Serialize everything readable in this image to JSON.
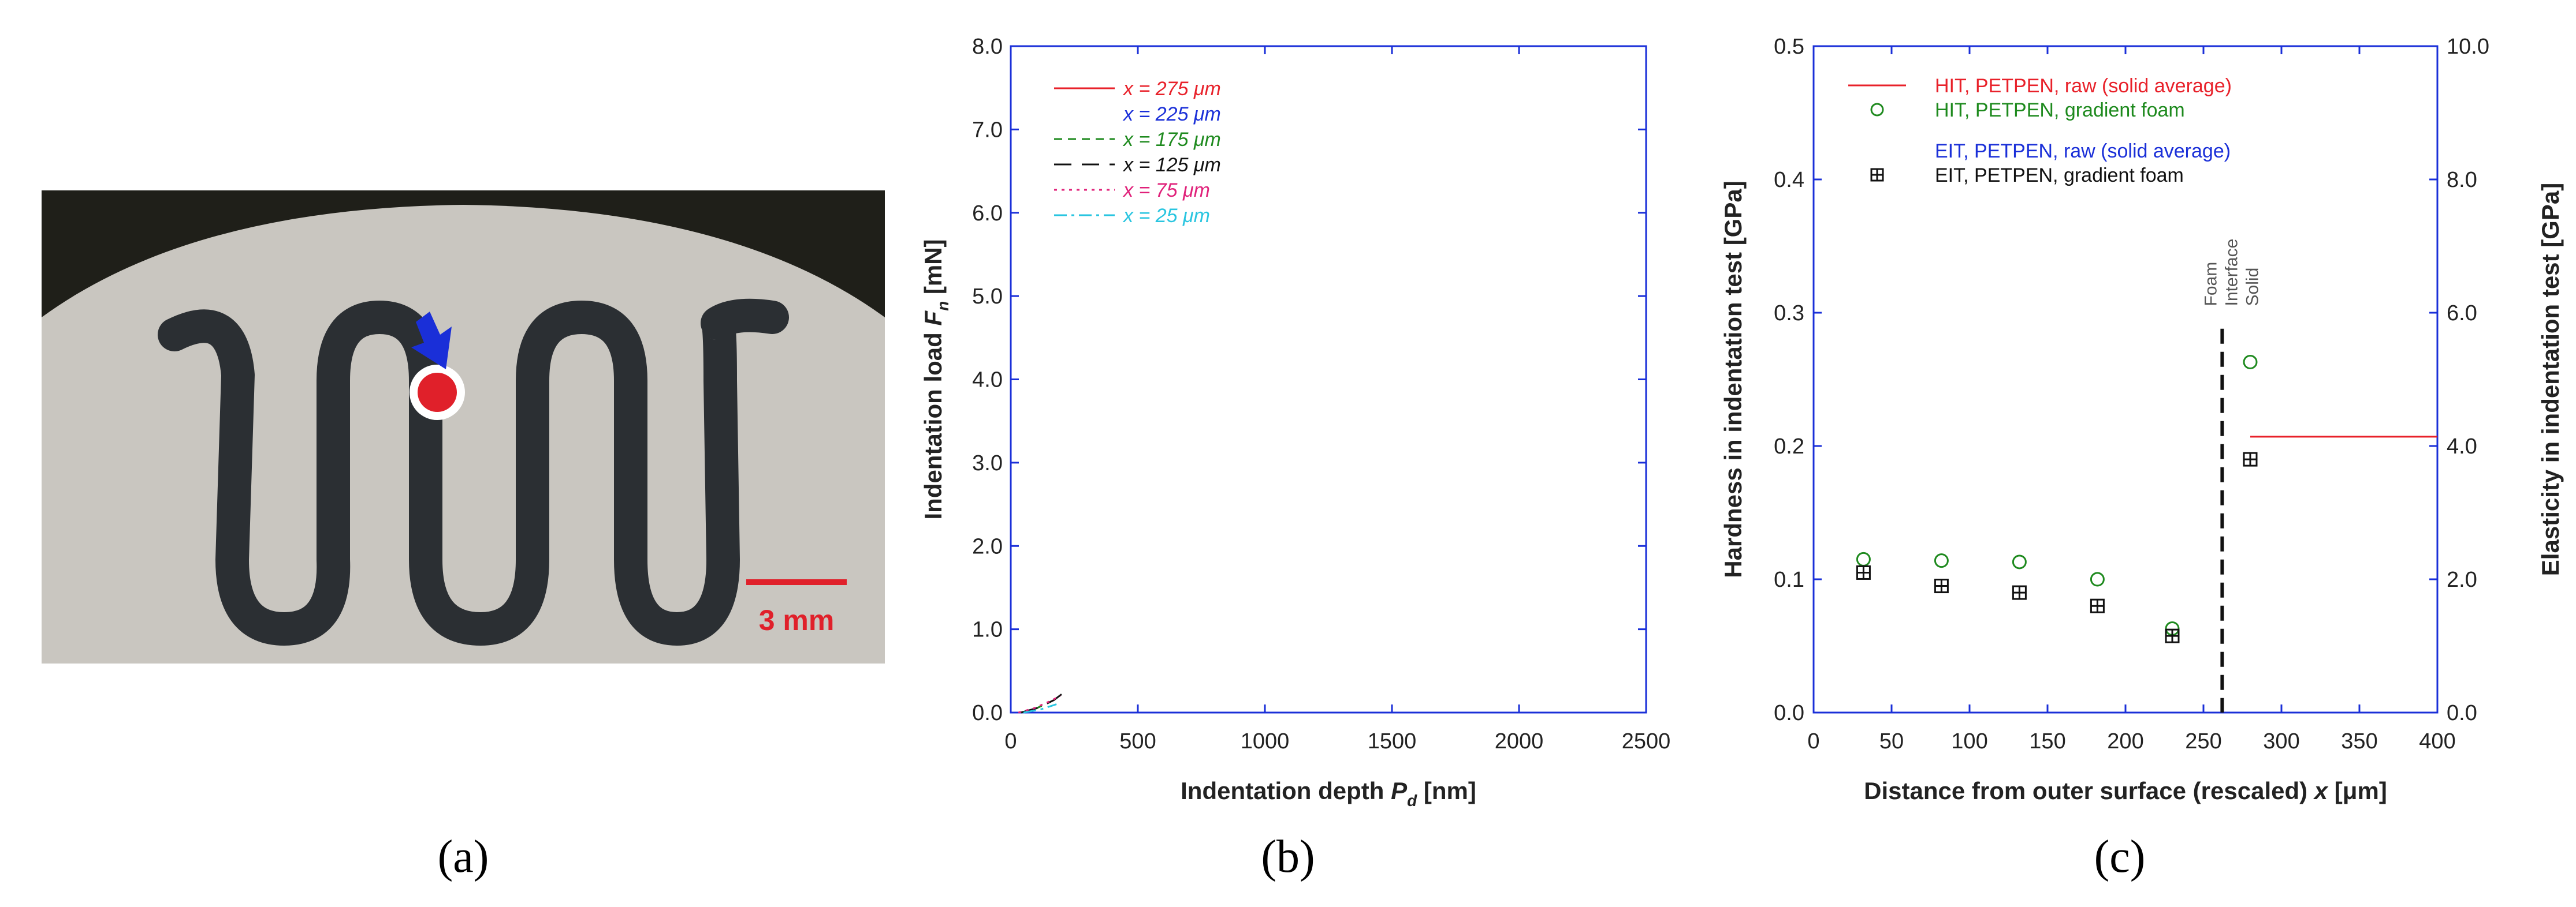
{
  "figure": {
    "captions": {
      "a": "(a)",
      "b": "(b)",
      "c": "(c)"
    }
  },
  "photo": {
    "scale_label": "3 mm",
    "colors": {
      "background": "#1f1f19",
      "disc": "#c9c6c0",
      "pattern": "#2b2f33",
      "marker": "#e0202a",
      "arrow": "#1a2fd8",
      "scale": "#e0202a"
    }
  },
  "chart_data": [
    {
      "id": "b",
      "type": "line",
      "title": "",
      "xlabel": "Indentation depth",
      "xlabel_symbol": "P",
      "xlabel_sub": "d",
      "xlabel_unit": "[nm]",
      "ylabel": "Indentation load",
      "ylabel_symbol": "F",
      "ylabel_sub": "n",
      "ylabel_unit": "[mN]",
      "xlim": [
        0,
        2500
      ],
      "ylim": [
        0,
        8.0
      ],
      "xticks": [
        0,
        500,
        1000,
        1500,
        2000,
        2500
      ],
      "xtick_labels": [
        "0",
        "500",
        "1000",
        "1500",
        "2000",
        "2500"
      ],
      "yticks": [
        0,
        1,
        2,
        3,
        4,
        5,
        6,
        7,
        8
      ],
      "ytick_labels": [
        "0.0",
        "1.0",
        "2.0",
        "3.0",
        "4.0",
        "5.0",
        "6.0",
        "7.0",
        "8.0"
      ],
      "series": [
        {
          "name": "x = 275 μm",
          "color": "#e8212a",
          "dash": "solid",
          "x": [],
          "y": []
        },
        {
          "name": "x = 225 μm",
          "color": "#1a2fd8",
          "dash": "solid",
          "x": [],
          "y": []
        },
        {
          "name": "x = 175 μm",
          "color": "#1e8a1e",
          "dash": "short",
          "x": [
            40,
            100,
            150,
            190
          ],
          "y": [
            0.0,
            0.05,
            0.12,
            0.18
          ]
        },
        {
          "name": "x = 125 μm",
          "color": "#111111",
          "dash": "long",
          "x": [
            40,
            110,
            170,
            200
          ],
          "y": [
            0.0,
            0.06,
            0.15,
            0.22
          ]
        },
        {
          "name": "x = 75 μm",
          "color": "#e0217a",
          "dash": "dot",
          "x": [
            30,
            90,
            150,
            195
          ],
          "y": [
            0.0,
            0.05,
            0.13,
            0.2
          ]
        },
        {
          "name": "x = 25 μm",
          "color": "#29c5e0",
          "dash": "dashdot",
          "x": [
            50,
            120,
            180
          ],
          "y": [
            0.0,
            0.04,
            0.1
          ]
        }
      ]
    },
    {
      "id": "c",
      "type": "scatter",
      "title": "",
      "xlabel": "Distance from outer surface (rescaled)",
      "xlabel_symbol": "x",
      "xlabel_unit": "[μm]",
      "ylabel": "Hardness in indentation test",
      "ylabel_unit": "[GPa]",
      "y2label": "Elasticity in indentation test",
      "y2label_unit": "[GPa]",
      "xlim": [
        0,
        400
      ],
      "ylim": [
        0,
        0.5
      ],
      "y2lim": [
        0,
        10.0
      ],
      "xticks": [
        0,
        50,
        100,
        150,
        200,
        250,
        300,
        350,
        400
      ],
      "xtick_labels": [
        "0",
        "50",
        "100",
        "150",
        "200",
        "250",
        "300",
        "350",
        "400"
      ],
      "yticks": [
        0,
        0.1,
        0.2,
        0.3,
        0.4,
        0.5
      ],
      "ytick_labels": [
        "0.0",
        "0.1",
        "0.2",
        "0.3",
        "0.4",
        "0.5"
      ],
      "y2ticks": [
        0,
        2,
        4,
        6,
        8,
        10
      ],
      "y2tick_labels": [
        "0.0",
        "2.0",
        "4.0",
        "6.0",
        "8.0",
        "10.0"
      ],
      "interface_x": 262,
      "interface_labels": [
        "Foam",
        "Interface",
        "Solid"
      ],
      "legend": [
        {
          "label": "HIT, PETPEN, raw (solid average)",
          "color": "#e8212a",
          "marker": "line",
          "label_color": "#e8212a"
        },
        {
          "label": "HIT, PETPEN, gradient foam",
          "color": "#1e8a1e",
          "marker": "circle",
          "label_color": "#1e8a1e"
        },
        {
          "label": "EIT, PETPEN, raw (solid average)",
          "color": "#1a2fd8",
          "marker": "line",
          "label_color": "#1a2fd8"
        },
        {
          "label": "EIT, PETPEN, gradient foam",
          "color": "#111111",
          "marker": "boxplus",
          "label_color": "#111111"
        }
      ],
      "series": [
        {
          "name": "HIT, PETPEN, raw (solid average)",
          "axis": "y",
          "type": "hline",
          "x_range": [
            280,
            400
          ],
          "y": 0.207,
          "color": "#e8212a"
        },
        {
          "name": "HIT, PETPEN, gradient foam",
          "axis": "y",
          "type": "scatter",
          "marker": "circle",
          "x": [
            32,
            82,
            132,
            182,
            230,
            280
          ],
          "y": [
            0.115,
            0.114,
            0.113,
            0.1,
            0.063,
            0.263
          ],
          "color": "#1e8a1e"
        },
        {
          "name": "EIT, PETPEN, gradient foam",
          "axis": "y2",
          "type": "scatter",
          "marker": "boxplus",
          "x": [
            32,
            82,
            132,
            182,
            230,
            280
          ],
          "y": [
            2.1,
            1.9,
            1.8,
            1.6,
            1.15,
            3.8
          ],
          "color": "#111111"
        }
      ]
    }
  ]
}
